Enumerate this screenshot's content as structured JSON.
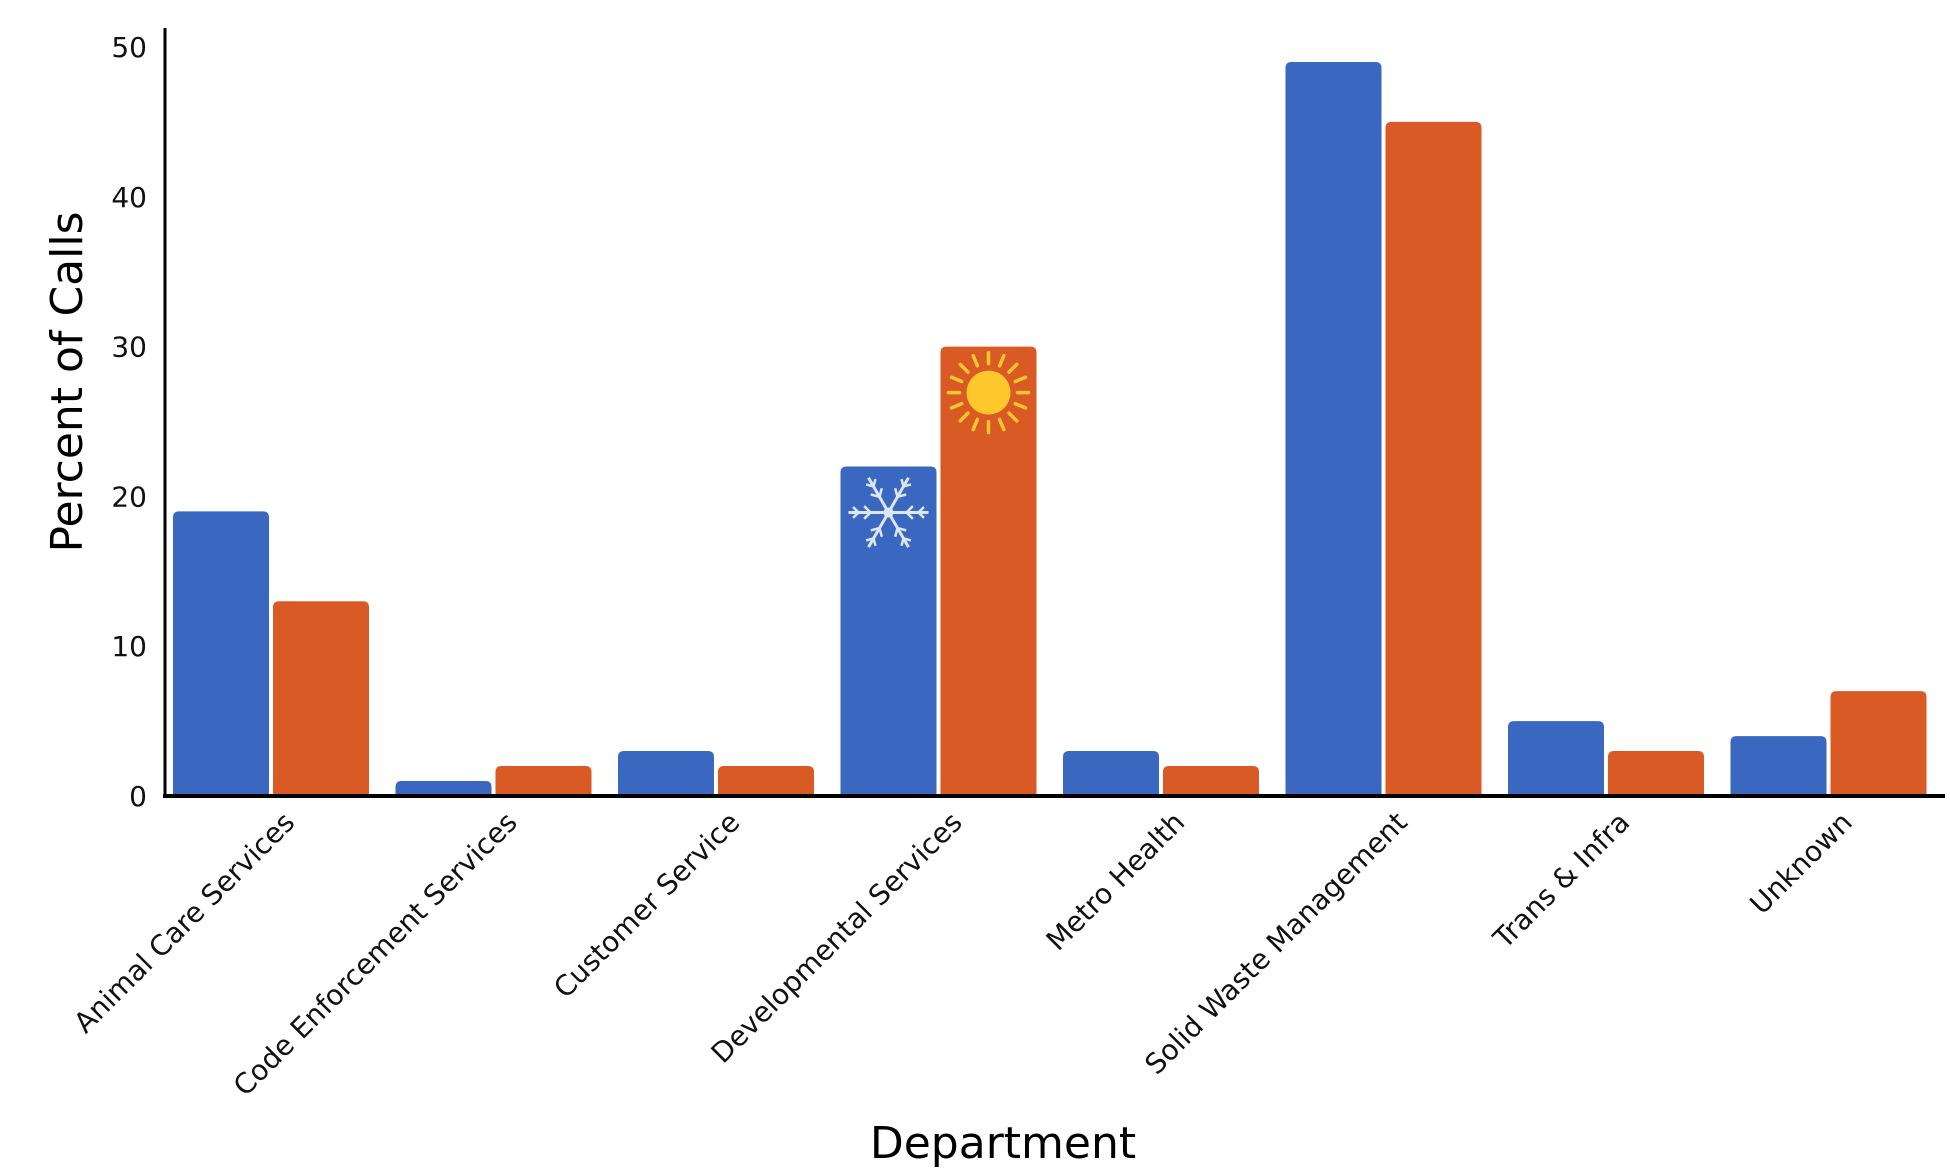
{
  "chart_data": {
    "type": "bar",
    "title": "",
    "xlabel": "Department",
    "ylabel": "Percent of Calls",
    "ylim": [
      0,
      50
    ],
    "yticks": [
      0,
      10,
      20,
      30,
      40,
      50
    ],
    "grid": false,
    "categories": [
      "Animal Care Services",
      "Code Enforcement Services",
      "Customer Service",
      "Developmental Services",
      "Metro Health",
      "Solid Waste Management",
      "Trans & Infra",
      "Unknown"
    ],
    "series": [
      {
        "values": [
          19,
          1,
          3,
          22,
          3,
          49,
          5,
          4
        ],
        "color": "#3A67BF",
        "icon": "snowflake-icon"
      },
      {
        "values": [
          13,
          2,
          2,
          30,
          2,
          45,
          3,
          7
        ],
        "color": "#D95A24",
        "icon": "sun-icon"
      }
    ]
  }
}
